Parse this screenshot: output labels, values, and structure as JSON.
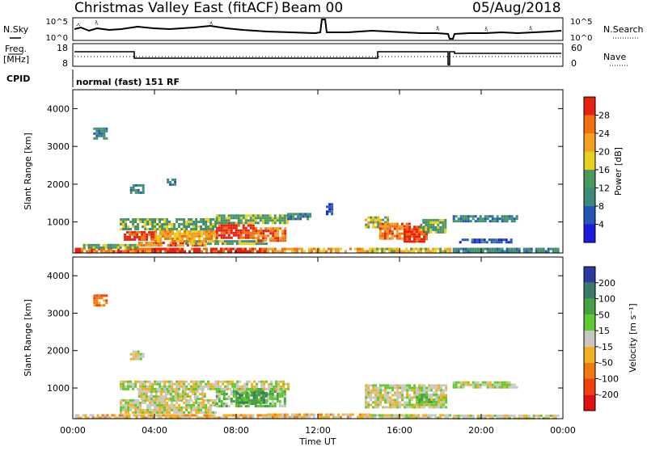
{
  "header": {
    "station": "Christmas Valley East (fitACF)",
    "beam": "Beam 00",
    "date": "05/Aug/2018"
  },
  "summary_panel": {
    "nsky_label": "N.Sky",
    "nsearch_label": "N.Search",
    "left_ticks": [
      "10^5",
      "10^0"
    ],
    "right_ticks": [
      "10^5",
      "10^0"
    ]
  },
  "freq_panel": {
    "freq_label": "Freq.",
    "freq_unit": "[MHz]",
    "nave_label": "Nave",
    "left_ticks": [
      "18",
      "8"
    ],
    "right_ticks": [
      "60",
      "0"
    ]
  },
  "cpid": {
    "label": "CPID",
    "value": "normal (fast) 151 RF"
  },
  "x_axis": {
    "label": "Time UT",
    "ticks": [
      "00:00",
      "04:00",
      "08:00",
      "12:00",
      "16:00",
      "20:00",
      "00:00"
    ]
  },
  "chart_data": [
    {
      "type": "heatmap",
      "name": "power",
      "ylabel": "Slant Range [km]",
      "yticks": [
        "1000",
        "2000",
        "3000",
        "4000"
      ],
      "ylim": [
        180,
        4500
      ],
      "xlim_hours": [
        0,
        24
      ],
      "colorbar": {
        "label": "Power [dB]",
        "ticks": [
          "4",
          "8",
          "12",
          "16",
          "20",
          "24",
          "28"
        ],
        "colors": [
          "#1a1ae0",
          "#2456b8",
          "#3d8a78",
          "#4a9a60",
          "#e8d020",
          "#f5a020",
          "#f07010",
          "#e82010"
        ]
      },
      "regions": [
        {
          "t": [
            0.1,
            0.4
          ],
          "r": [
            200,
            320
          ],
          "level": 7
        },
        {
          "t": [
            0.4,
            4.0
          ],
          "r": [
            200,
            320
          ],
          "level": 6
        },
        {
          "t": [
            4.0,
            9.5
          ],
          "r": [
            200,
            320
          ],
          "level": 7
        },
        {
          "t": [
            9.5,
            14.5
          ],
          "r": [
            200,
            320
          ],
          "level": 5
        },
        {
          "t": [
            14.5,
            18.5
          ],
          "r": [
            200,
            320
          ],
          "level": 4
        },
        {
          "t": [
            18.6,
            23.8
          ],
          "r": [
            200,
            320
          ],
          "level": 2
        },
        {
          "t": [
            0.5,
            3.2
          ],
          "r": [
            350,
            420
          ],
          "level": 3
        },
        {
          "t": [
            3.2,
            6.5
          ],
          "r": [
            380,
            480
          ],
          "level": 6
        },
        {
          "t": [
            5.5,
            9.5
          ],
          "r": [
            420,
            520
          ],
          "level": 3
        },
        {
          "t": [
            2.5,
            4.0
          ],
          "r": [
            520,
            760
          ],
          "level": 7
        },
        {
          "t": [
            4.0,
            7.0
          ],
          "r": [
            480,
            780
          ],
          "level": 5
        },
        {
          "t": [
            7.0,
            8.8
          ],
          "r": [
            560,
            1000
          ],
          "level": 7
        },
        {
          "t": [
            8.8,
            10.4
          ],
          "r": [
            520,
            860
          ],
          "level": 6
        },
        {
          "t": [
            2.3,
            7.0
          ],
          "r": [
            780,
            1100
          ],
          "level": 3
        },
        {
          "t": [
            7.0,
            10.5
          ],
          "r": [
            1000,
            1200
          ],
          "level": 3
        },
        {
          "t": [
            10.5,
            11.6
          ],
          "r": [
            1050,
            1240
          ],
          "level": 2
        },
        {
          "t": [
            14.3,
            15.4
          ],
          "r": [
            850,
            1150
          ],
          "level": 4
        },
        {
          "t": [
            15.0,
            16.5
          ],
          "r": [
            560,
            980
          ],
          "level": 6
        },
        {
          "t": [
            16.2,
            17.3
          ],
          "r": [
            500,
            900
          ],
          "level": 7
        },
        {
          "t": [
            17.0,
            18.3
          ],
          "r": [
            700,
            1080
          ],
          "level": 3
        },
        {
          "t": [
            18.6,
            21.8
          ],
          "r": [
            1000,
            1180
          ],
          "level": 2
        },
        {
          "t": [
            18.8,
            21.5
          ],
          "r": [
            460,
            560
          ],
          "level": 1
        },
        {
          "t": [
            2.8,
            3.4
          ],
          "r": [
            1800,
            2000
          ],
          "level": 2
        },
        {
          "t": [
            4.6,
            5.0
          ],
          "r": [
            2000,
            2150
          ],
          "level": 2
        },
        {
          "t": [
            1.0,
            1.6
          ],
          "r": [
            3200,
            3500
          ],
          "level": 2
        },
        {
          "t": [
            12.4,
            12.7
          ],
          "r": [
            1200,
            1500
          ],
          "level": 1
        }
      ]
    },
    {
      "type": "heatmap",
      "name": "velocity",
      "ylabel": "Slant Range [km]",
      "yticks": [
        "1000",
        "2000",
        "3000",
        "4000"
      ],
      "ylim": [
        180,
        4500
      ],
      "xlim_hours": [
        0,
        24
      ],
      "colorbar": {
        "label": "Velocity [m s⁻¹]",
        "ticks": [
          "200",
          "100",
          "50",
          "15",
          "-15",
          "-50",
          "-100",
          "-200"
        ],
        "colors": [
          "#2a3aa0",
          "#3a7a68",
          "#48a040",
          "#60c830",
          "#c8c8c0",
          "#f2b020",
          "#f07a10",
          "#f04010",
          "#e01010"
        ]
      },
      "regions": [
        {
          "t": [
            0.1,
            9.5
          ],
          "r": [
            200,
            300
          ],
          "level": 5
        },
        {
          "t": [
            9.5,
            14.5
          ],
          "r": [
            200,
            320
          ],
          "level": 5
        },
        {
          "t": [
            14.5,
            18.5
          ],
          "r": [
            200,
            300
          ],
          "level": 4
        },
        {
          "t": [
            18.6,
            23.8
          ],
          "r": [
            200,
            290
          ],
          "level": 4
        },
        {
          "t": [
            2.3,
            7.0
          ],
          "r": [
            350,
            700
          ],
          "level": 4
        },
        {
          "t": [
            3.2,
            6.5
          ],
          "r": [
            700,
            1000
          ],
          "level": 4
        },
        {
          "t": [
            7.0,
            10.4
          ],
          "r": [
            500,
            1000
          ],
          "level": 3
        },
        {
          "t": [
            8.0,
            9.5
          ],
          "r": [
            600,
            900
          ],
          "level": 2
        },
        {
          "t": [
            2.3,
            10.5
          ],
          "r": [
            1000,
            1200
          ],
          "level": 4
        },
        {
          "t": [
            14.3,
            18.3
          ],
          "r": [
            500,
            1100
          ],
          "level": 4
        },
        {
          "t": [
            16.8,
            17.8
          ],
          "r": [
            600,
            850
          ],
          "level": 3
        },
        {
          "t": [
            18.6,
            21.8
          ],
          "r": [
            1000,
            1180
          ],
          "level": 4
        },
        {
          "t": [
            2.8,
            3.4
          ],
          "r": [
            1800,
            2000
          ],
          "level": 4
        },
        {
          "t": [
            1.0,
            1.6
          ],
          "r": [
            3200,
            3500
          ],
          "level": 6
        }
      ]
    }
  ]
}
